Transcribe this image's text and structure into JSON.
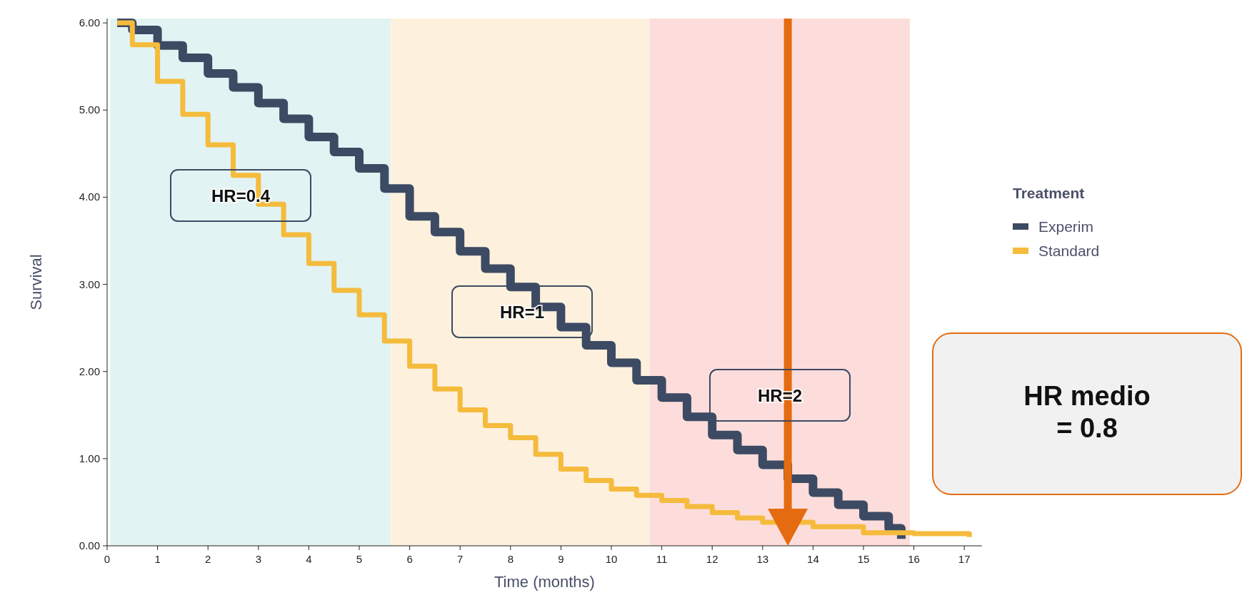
{
  "chart_data": {
    "type": "step",
    "xlabel": "Time (months)",
    "ylabel": "Survival",
    "legend_title": "Treatment",
    "legend": "right",
    "xlim": [
      0,
      17.35
    ],
    "ylim": [
      0,
      6.05
    ],
    "xticks": [
      0,
      1,
      2,
      3,
      4,
      5,
      6,
      7,
      8,
      9,
      10,
      11,
      12,
      13,
      14,
      15,
      16,
      17
    ],
    "yticks": [
      {
        "value": 0,
        "label": "0.00"
      },
      {
        "value": 1,
        "label": "1.00"
      },
      {
        "value": 2,
        "label": "2.00"
      },
      {
        "value": 3,
        "label": "3.00"
      },
      {
        "value": 4,
        "label": "4.00"
      },
      {
        "value": 5,
        "label": "5.00"
      },
      {
        "value": 6,
        "label": "6.00"
      }
    ],
    "grid": false,
    "series": [
      {
        "name": "Experim",
        "color": "#3d4a63",
        "x": [
          0.2,
          0.5,
          1,
          1.5,
          2,
          2.5,
          3,
          3.5,
          4,
          4.5,
          5,
          5.5,
          6,
          6.5,
          7,
          7.5,
          8,
          8.5,
          9,
          9.5,
          10,
          10.5,
          11,
          11.5,
          12,
          12.5,
          13,
          13.5,
          14,
          14.5,
          15,
          15.5,
          15.75
        ],
        "values": [
          6.0,
          5.92,
          5.74,
          5.6,
          5.42,
          5.26,
          5.08,
          4.9,
          4.69,
          4.52,
          4.33,
          4.1,
          3.78,
          3.6,
          3.38,
          3.18,
          2.97,
          2.74,
          2.51,
          2.3,
          2.1,
          1.9,
          1.7,
          1.48,
          1.27,
          1.1,
          0.93,
          0.77,
          0.61,
          0.47,
          0.34,
          0.2,
          0.08
        ]
      },
      {
        "name": "Standard",
        "color": "#f5bb3c",
        "x": [
          0.2,
          0.5,
          1,
          1.5,
          2,
          2.5,
          3,
          3.5,
          4,
          4.5,
          5,
          5.5,
          6,
          6.5,
          7,
          7.5,
          8,
          8.5,
          9,
          9.5,
          10,
          10.5,
          11,
          11.5,
          12,
          12.5,
          13,
          14,
          15,
          16,
          17.1
        ],
        "values": [
          6.0,
          5.75,
          5.33,
          4.95,
          4.6,
          4.25,
          3.92,
          3.57,
          3.24,
          2.93,
          2.65,
          2.35,
          2.06,
          1.8,
          1.56,
          1.38,
          1.24,
          1.05,
          0.88,
          0.75,
          0.65,
          0.58,
          0.52,
          0.45,
          0.38,
          0.32,
          0.27,
          0.22,
          0.15,
          0.14,
          0.1
        ]
      }
    ],
    "bands": [
      {
        "axis": "x",
        "from": 0.06,
        "to": 5.63,
        "color": "#e2f3f3"
      },
      {
        "axis": "x",
        "from": 5.63,
        "to": 10.76,
        "color": "#fdf1dd"
      },
      {
        "axis": "x",
        "from": 10.76,
        "to": 15.92,
        "color": "#fddddb"
      }
    ],
    "ref_lines": [
      {
        "axis": "x",
        "value": 13.5,
        "color": "#e56b10"
      }
    ],
    "annotations": [
      "HR=0.4",
      "HR=1",
      "HR=2",
      "HR medio\n= 0.8"
    ]
  }
}
